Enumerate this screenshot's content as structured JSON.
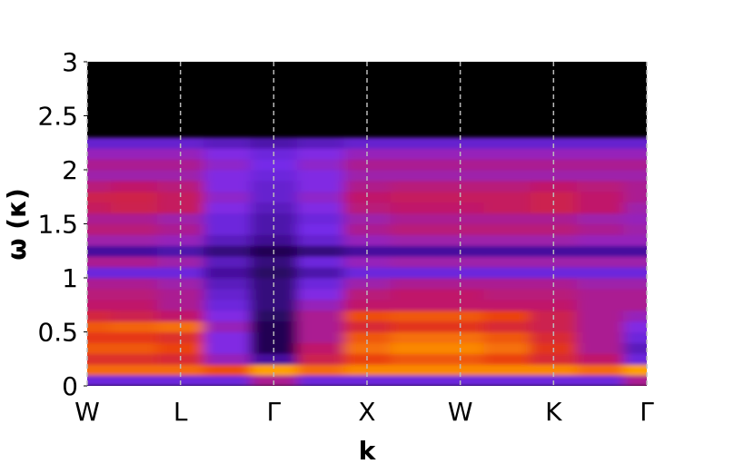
{
  "chart_data": {
    "type": "heatmap",
    "xlabel": "k",
    "ylabel": "ω (κ)",
    "xlim": [
      0,
      6
    ],
    "ylim": [
      0,
      3
    ],
    "xticks": [
      {
        "value": 0,
        "label": "W"
      },
      {
        "value": 1,
        "label": "L"
      },
      {
        "value": 2,
        "label": "Γ"
      },
      {
        "value": 3,
        "label": "X"
      },
      {
        "value": 4,
        "label": "W"
      },
      {
        "value": 5,
        "label": "K"
      },
      {
        "value": 6,
        "label": "Γ"
      }
    ],
    "yticks": [
      0,
      0.5,
      1,
      1.5,
      2,
      2.5,
      3
    ],
    "grid": true,
    "colormap": [
      "#000000",
      "#3a0a8a",
      "#7a2cf0",
      "#c0186a",
      "#e83a10",
      "#ff9a00",
      "#ffe040"
    ],
    "x": [
      0,
      0.5,
      1,
      1.5,
      2,
      2.5,
      3,
      3.5,
      4,
      4.5,
      5,
      5.5,
      6
    ],
    "y": [
      0.05,
      0.15,
      0.25,
      0.35,
      0.45,
      0.55,
      0.65,
      0.75,
      0.85,
      0.95,
      1.05,
      1.15,
      1.25,
      1.35,
      1.45,
      1.55,
      1.65,
      1.75,
      1.85,
      1.95,
      2.05,
      2.15,
      2.25
    ],
    "z": [
      [
        0.3,
        0.3,
        0.3,
        0.3,
        0.45,
        0.3,
        0.3,
        0.3,
        0.3,
        0.3,
        0.3,
        0.3,
        0.45
      ],
      [
        0.75,
        0.75,
        0.75,
        0.7,
        0.85,
        0.75,
        0.8,
        0.8,
        0.8,
        0.8,
        0.8,
        0.75,
        0.85
      ],
      [
        0.62,
        0.62,
        0.6,
        0.4,
        0.2,
        0.55,
        0.68,
        0.72,
        0.72,
        0.68,
        0.6,
        0.5,
        0.3
      ],
      [
        0.72,
        0.72,
        0.68,
        0.35,
        0.1,
        0.5,
        0.76,
        0.8,
        0.8,
        0.76,
        0.64,
        0.45,
        0.25
      ],
      [
        0.66,
        0.66,
        0.62,
        0.35,
        0.1,
        0.45,
        0.72,
        0.76,
        0.76,
        0.72,
        0.6,
        0.45,
        0.3
      ],
      [
        0.72,
        0.74,
        0.76,
        0.4,
        0.1,
        0.45,
        0.6,
        0.64,
        0.64,
        0.6,
        0.55,
        0.45,
        0.35
      ],
      [
        0.58,
        0.55,
        0.5,
        0.35,
        0.12,
        0.45,
        0.7,
        0.72,
        0.72,
        0.68,
        0.55,
        0.45,
        0.4
      ],
      [
        0.5,
        0.5,
        0.45,
        0.3,
        0.15,
        0.4,
        0.5,
        0.5,
        0.5,
        0.5,
        0.5,
        0.45,
        0.45
      ],
      [
        0.48,
        0.48,
        0.45,
        0.28,
        0.15,
        0.35,
        0.48,
        0.5,
        0.5,
        0.48,
        0.48,
        0.45,
        0.45
      ],
      [
        0.45,
        0.45,
        0.42,
        0.25,
        0.15,
        0.3,
        0.42,
        0.45,
        0.45,
        0.45,
        0.45,
        0.42,
        0.42
      ],
      [
        0.3,
        0.3,
        0.3,
        0.2,
        0.12,
        0.22,
        0.3,
        0.3,
        0.3,
        0.3,
        0.3,
        0.3,
        0.3
      ],
      [
        0.45,
        0.45,
        0.42,
        0.25,
        0.15,
        0.3,
        0.4,
        0.42,
        0.42,
        0.42,
        0.42,
        0.42,
        0.42
      ],
      [
        0.2,
        0.2,
        0.22,
        0.15,
        0.1,
        0.15,
        0.2,
        0.2,
        0.2,
        0.2,
        0.2,
        0.2,
        0.2
      ],
      [
        0.42,
        0.42,
        0.4,
        0.25,
        0.18,
        0.28,
        0.4,
        0.42,
        0.42,
        0.42,
        0.42,
        0.4,
        0.4
      ],
      [
        0.48,
        0.48,
        0.45,
        0.3,
        0.22,
        0.32,
        0.45,
        0.48,
        0.48,
        0.48,
        0.48,
        0.45,
        0.42
      ],
      [
        0.45,
        0.45,
        0.42,
        0.3,
        0.22,
        0.3,
        0.42,
        0.45,
        0.45,
        0.45,
        0.45,
        0.42,
        0.4
      ],
      [
        0.52,
        0.55,
        0.52,
        0.35,
        0.25,
        0.35,
        0.48,
        0.5,
        0.5,
        0.52,
        0.55,
        0.5,
        0.42
      ],
      [
        0.55,
        0.56,
        0.52,
        0.38,
        0.28,
        0.38,
        0.5,
        0.52,
        0.52,
        0.52,
        0.55,
        0.5,
        0.45
      ],
      [
        0.48,
        0.5,
        0.48,
        0.35,
        0.28,
        0.35,
        0.46,
        0.48,
        0.48,
        0.48,
        0.5,
        0.48,
        0.45
      ],
      [
        0.42,
        0.42,
        0.42,
        0.35,
        0.3,
        0.35,
        0.42,
        0.42,
        0.42,
        0.42,
        0.42,
        0.42,
        0.42
      ],
      [
        0.45,
        0.45,
        0.45,
        0.38,
        0.32,
        0.38,
        0.45,
        0.45,
        0.45,
        0.45,
        0.45,
        0.45,
        0.45
      ],
      [
        0.4,
        0.4,
        0.4,
        0.35,
        0.3,
        0.35,
        0.4,
        0.4,
        0.4,
        0.4,
        0.4,
        0.4,
        0.4
      ],
      [
        0.28,
        0.28,
        0.28,
        0.25,
        0.22,
        0.25,
        0.28,
        0.28,
        0.28,
        0.28,
        0.28,
        0.28,
        0.28
      ]
    ]
  }
}
